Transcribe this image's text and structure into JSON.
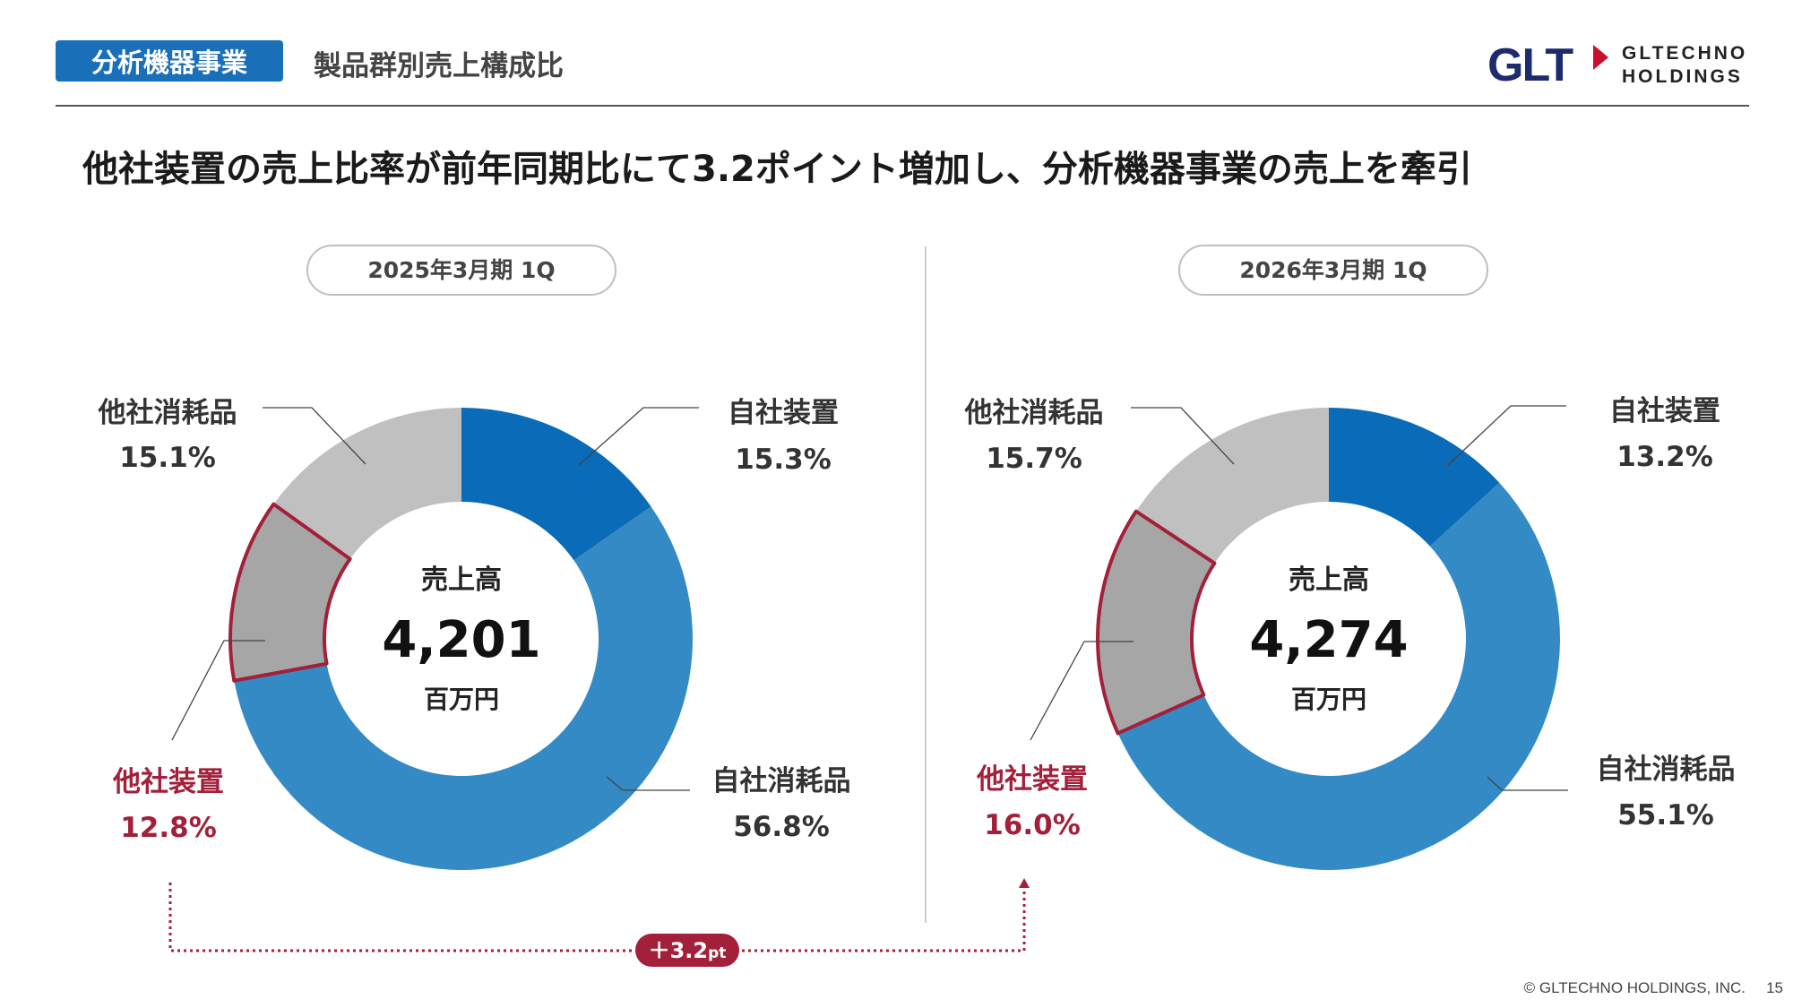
{
  "header": {
    "section_label": "分析機器事業",
    "subtitle": "製品群別売上構成比",
    "logo_mark": "GLT",
    "logo_line1": "GLTECHNO",
    "logo_line2": "HOLDINGS"
  },
  "headline": "他社装置の売上比率が前年同期比にて3.2ポイント増加し、分析機器事業の売上を牽引",
  "colors": {
    "self_equipment": "#0a6cb8",
    "self_consumables": "#348ac5",
    "other_equipment": "#a6a6a6",
    "other_consumables": "#c0c0c0",
    "highlight": "#a3203a",
    "brand_navy": "#1c2a6e",
    "brand_red": "#c8102e"
  },
  "chart_data": [
    {
      "type": "pie",
      "period": "2025年3月期 1Q",
      "center_label": "売上高",
      "center_value": "4,201",
      "center_unit": "百万円",
      "slices": [
        {
          "label": "自社装置",
          "value": 15.3,
          "value_text": "15.3%"
        },
        {
          "label": "自社消耗品",
          "value": 56.8,
          "value_text": "56.8%"
        },
        {
          "label": "他社装置",
          "value": 12.8,
          "value_text": "12.8%"
        },
        {
          "label": "他社消耗品",
          "value": 15.1,
          "value_text": "15.1%"
        }
      ]
    },
    {
      "type": "pie",
      "period": "2026年3月期 1Q",
      "center_label": "売上高",
      "center_value": "4,274",
      "center_unit": "百万円",
      "slices": [
        {
          "label": "自社装置",
          "value": 13.2,
          "value_text": "13.2%"
        },
        {
          "label": "自社消耗品",
          "value": 55.1,
          "value_text": "55.1%"
        },
        {
          "label": "他社装置",
          "value": 16.0,
          "value_text": "16.0%"
        },
        {
          "label": "他社消耗品",
          "value": 15.7,
          "value_text": "15.7%"
        }
      ]
    }
  ],
  "change_label": "＋3.2",
  "change_unit": "pt",
  "footer": {
    "copyright": "© GLTECHNO HOLDINGS, INC.",
    "page_number": "15"
  }
}
